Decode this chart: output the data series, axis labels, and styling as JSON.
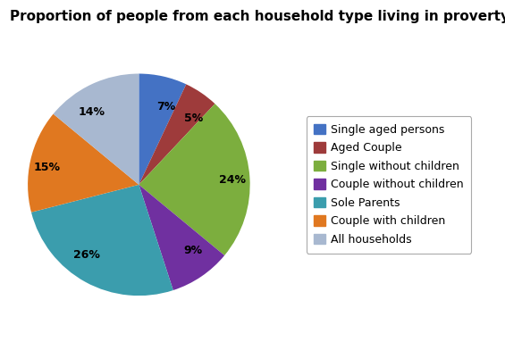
{
  "title": "Proportion of people from each household type living in proverty",
  "labels": [
    "Single aged persons",
    "Aged Couple",
    "Single without children",
    "Couple without children",
    "Sole Parents",
    "Couple with children",
    "All households"
  ],
  "values": [
    7,
    5,
    24,
    9,
    26,
    15,
    14
  ],
  "colors": [
    "#4472C4",
    "#9E3B3B",
    "#7CAE3E",
    "#7030A0",
    "#3B9DAD",
    "#E07820",
    "#A8B8D0"
  ],
  "title_fontsize": 11,
  "label_fontsize": 9,
  "legend_fontsize": 9,
  "background_color": "#FFFFFF"
}
